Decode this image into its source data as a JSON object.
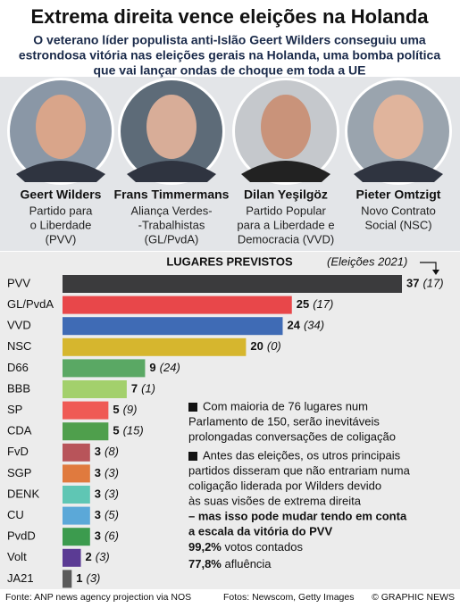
{
  "header": {
    "title": "Extrema direita vence eleições na Holanda",
    "subtitle": [
      "O veterano líder populista anti-Islão Geert Wilders conseguiu uma",
      "estrondosa vitória nas eleições gerais na Holanda, uma bomba política",
      "que vai lançar ondas de choque em toda a UE"
    ]
  },
  "people": [
    {
      "name": "Geert Wilders",
      "party": [
        "Partido para",
        "o Liberdade",
        "(PVV)"
      ]
    },
    {
      "name": "Frans Timmermans",
      "party": [
        "Aliança Verdes-",
        "-Trabalhistas",
        "(GL/PvdA)"
      ]
    },
    {
      "name": "Dilan Yeşilgöz",
      "party": [
        "Partido Popular",
        "para a Liberdade e",
        "Democracia (VVD)"
      ]
    },
    {
      "name": "Pieter Omtzigt",
      "party": [
        "Novo Contrato",
        "Social (NSC)"
      ]
    }
  ],
  "chart_data": {
    "type": "bar",
    "orientation": "horizontal",
    "title": "LUGARES PREVISTOS",
    "categories": [
      "PVV",
      "GL/PvdA",
      "VVD",
      "NSC",
      "D66",
      "BBB",
      "SP",
      "CDA",
      "FvD",
      "SGP",
      "DENK",
      "CU",
      "PvdD",
      "Volt",
      "JA21"
    ],
    "values": [
      37,
      25,
      24,
      20,
      9,
      7,
      5,
      5,
      3,
      3,
      3,
      3,
      3,
      2,
      1
    ],
    "colors": [
      "#3b3b3d",
      "#e8474a",
      "#3f6bb5",
      "#d6b62e",
      "#5aa864",
      "#a3d06c",
      "#ef5a55",
      "#4f9f4c",
      "#b8545a",
      "#e07a3e",
      "#5fc6b4",
      "#5ba8d8",
      "#3c9b4e",
      "#5b3b94",
      "#5a5a5a"
    ],
    "previous": {
      "name": "(Eleições 2021)",
      "values": [
        17,
        17,
        34,
        0,
        24,
        1,
        9,
        15,
        8,
        3,
        3,
        5,
        6,
        3,
        3
      ],
      "value_labels": [
        "(17)",
        "(17)",
        "(34)",
        "(0)",
        "(24)",
        "(1)",
        "(9)",
        "(15)",
        "(8)",
        "(3)",
        "(3)",
        "(5)",
        "(6)",
        "(3)",
        "(3)"
      ]
    }
  },
  "notes": [
    {
      "lines": [
        "Com maioria de 76 lugares num",
        "Parlamento de 150, serão inevitáveis",
        "prolongadas conversações de coligação"
      ],
      "bold_lines": []
    },
    {
      "lines": [
        "Antes das eleições, os utros principais",
        "partidos disseram que não entrariam numa",
        "coligação liderada por Wilders devido",
        "às suas visões de extrema direita"
      ],
      "bold_lines": [
        "– mas isso pode mudar tendo em conta",
        "a escala da vitória do PVV"
      ]
    }
  ],
  "stats": [
    {
      "value": "99,2%",
      "label": "votos contados"
    },
    {
      "value": "77,8%",
      "label": "afluência"
    }
  ],
  "footer": {
    "source": "Fonte: ANP news agency projection via NOS",
    "photos": "Fotos: Newscom, Getty Images",
    "credit": "© GRAPHIC NEWS"
  }
}
